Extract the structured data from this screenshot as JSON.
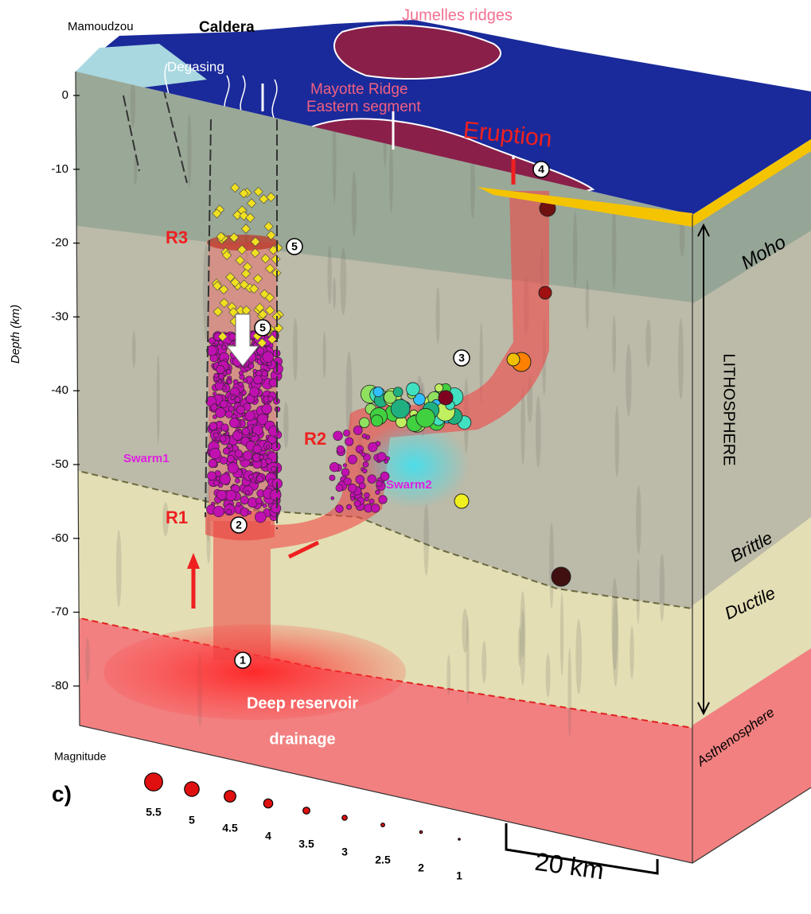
{
  "labels": {
    "mamoudzou": "Mamoudzou",
    "caldera": "Caldera",
    "jumelles": "Jumelles ridges",
    "degasing": "Degasing",
    "mayotte_ridge": "Mayotte Ridge",
    "eastern_segment": "Eastern segment",
    "eruption": "Eruption",
    "r1": "R1",
    "r2": "R2",
    "r3": "R3",
    "swarm1": "Swarm1",
    "swarm2": "Swarm2",
    "moho": "Moho",
    "lithosphere": "LITHOSPHERE",
    "brittle": "Brittle",
    "ductile": "Ductile",
    "asthenosphere": "Asthenosphere",
    "reservoir_1": "Deep reservoir",
    "reservoir_2": "drainage",
    "panel": "c)"
  },
  "depth_axis": {
    "label": "Depth (km)",
    "ticks": [
      0,
      -10,
      -20,
      -30,
      -40,
      -50,
      -60,
      -70,
      -80
    ]
  },
  "markers": [
    "1",
    "2",
    "3",
    "4",
    "5",
    "5"
  ],
  "magnitude_legend": {
    "title": "Magnitude",
    "values": [
      5.5,
      5,
      4.5,
      4,
      3.5,
      3,
      2.5,
      2,
      1
    ]
  },
  "scale_bar": {
    "label": "20 km"
  }
}
